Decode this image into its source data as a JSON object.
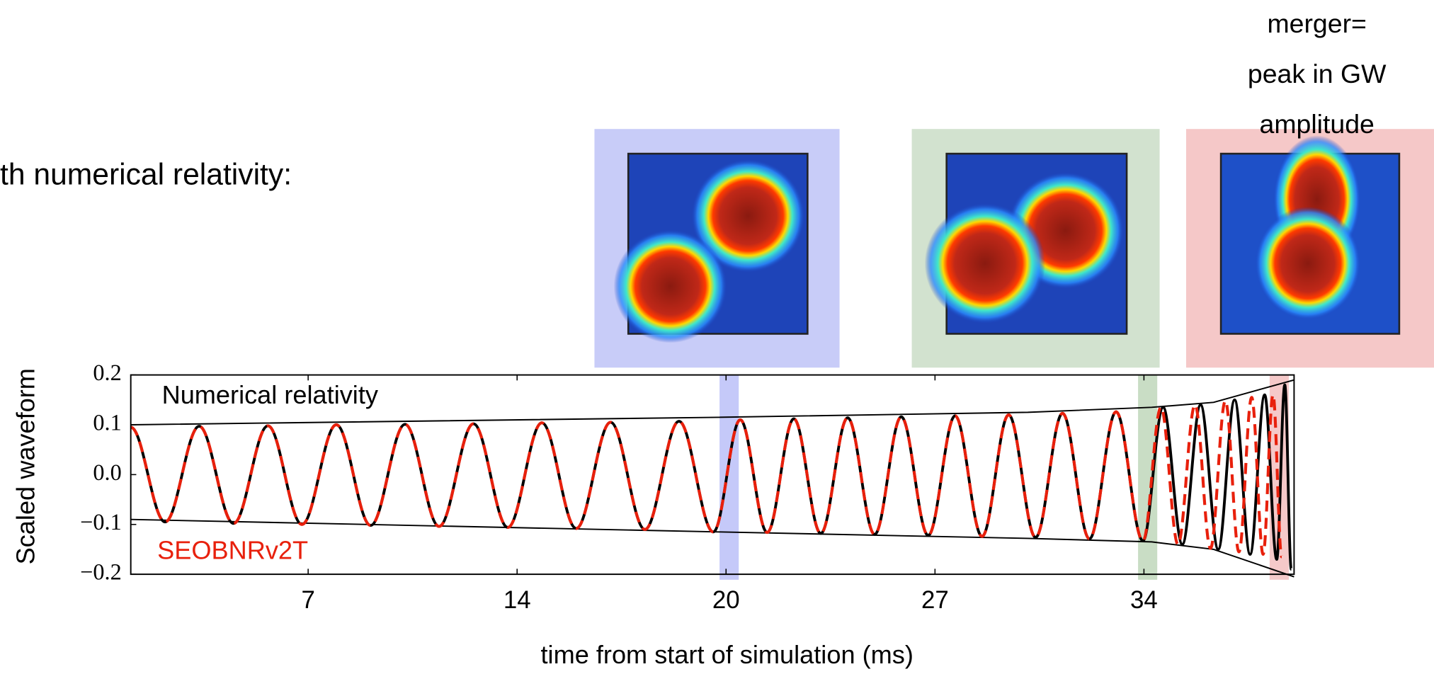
{
  "slide": {
    "text": "th numerical relativity:",
    "callout": [
      "merger=",
      "peak in GW",
      "amplitude"
    ]
  },
  "chart_data": {
    "type": "line",
    "xlabel": "time from start of simulation (ms)",
    "ylabel": "Scaled waveform",
    "xlim": [
      1.02,
      38.6
    ],
    "ylim": [
      -0.2,
      0.2
    ],
    "xticks": [
      {
        "value": 6.75,
        "label": "7"
      },
      {
        "value": 13.5,
        "label": "14"
      },
      {
        "value": 20.25,
        "label": "20"
      },
      27,
      {
        "value": 33.75,
        "label": "34"
      }
    ],
    "yticks": [
      0.2,
      0.1,
      {
        "value": 0,
        "label": "0.0"
      },
      {
        "value": -0.1,
        "label": "−0.1"
      },
      {
        "value": -0.2,
        "label": "−0.2"
      }
    ],
    "series": [
      {
        "name": "Numerical relativity",
        "color": "#000000",
        "smooth": true,
        "dashed": false,
        "x": [
          1.02,
          2.13,
          3.23,
          4.34,
          5.45,
          6.55,
          7.66,
          8.77,
          9.88,
          10.98,
          12.09,
          13.2,
          14.3,
          15.41,
          16.52,
          17.63,
          18.73,
          19.84,
          20.71,
          21.58,
          22.44,
          23.31,
          24.18,
          25.05,
          25.91,
          26.78,
          27.65,
          28.52,
          29.38,
          30.25,
          31.12,
          31.99,
          32.85,
          33.72,
          34.37,
          34.99,
          35.58,
          36.15,
          36.68,
          37.18,
          37.65,
          38.04,
          38.3,
          38.51
        ],
        "values": [
          0.095,
          -0.095,
          0.097,
          -0.098,
          0.098,
          -0.1,
          0.1,
          -0.102,
          0.101,
          -0.104,
          0.102,
          -0.106,
          0.104,
          -0.108,
          0.105,
          -0.11,
          0.107,
          -0.115,
          0.11,
          -0.116,
          0.112,
          -0.118,
          0.114,
          -0.12,
          0.116,
          -0.122,
          0.118,
          -0.124,
          0.12,
          -0.126,
          0.123,
          -0.129,
          0.126,
          -0.133,
          0.135,
          -0.14,
          0.14,
          -0.15,
          0.15,
          -0.16,
          0.16,
          -0.17,
          0.18,
          -0.19
        ]
      },
      {
        "name": "SEOBNRv2T",
        "color": "#e8200c",
        "smooth": true,
        "dashed": true,
        "x": [
          1.02,
          2.13,
          3.23,
          4.34,
          5.45,
          6.55,
          7.66,
          8.77,
          9.88,
          10.98,
          12.09,
          13.2,
          14.3,
          15.41,
          16.52,
          17.63,
          18.73,
          19.84,
          20.71,
          21.58,
          22.44,
          23.31,
          24.18,
          25.05,
          25.91,
          26.78,
          27.65,
          28.52,
          29.38,
          30.25,
          31.12,
          31.99,
          32.85,
          33.72,
          34.3,
          34.85,
          35.4,
          35.9,
          36.38,
          36.82,
          37.23,
          37.6,
          37.92,
          38.2
        ],
        "values": [
          0.095,
          -0.095,
          0.097,
          -0.098,
          0.098,
          -0.1,
          0.1,
          -0.102,
          0.101,
          -0.104,
          0.102,
          -0.106,
          0.104,
          -0.108,
          0.105,
          -0.11,
          0.107,
          -0.115,
          0.11,
          -0.116,
          0.112,
          -0.118,
          0.114,
          -0.12,
          0.116,
          -0.122,
          0.118,
          -0.124,
          0.12,
          -0.126,
          0.123,
          -0.129,
          0.126,
          -0.133,
          0.135,
          -0.14,
          0.14,
          -0.148,
          0.148,
          -0.155,
          0.155,
          -0.16,
          0.16,
          -0.165
        ]
      },
      {
        "color": "#000000",
        "smooth": false,
        "dashed": false,
        "x": [
          1.02,
          20,
          30,
          34,
          36,
          38.6
        ],
        "values": [
          0.1,
          0.115,
          0.125,
          0.135,
          0.145,
          0.19
        ]
      },
      {
        "color": "#000000",
        "smooth": false,
        "dashed": false,
        "x": [
          1.02,
          20,
          30,
          34,
          36,
          38.6
        ],
        "values": [
          -0.09,
          -0.115,
          -0.128,
          -0.135,
          -0.15,
          -0.205
        ]
      }
    ],
    "highlights": [
      {
        "x": 20.35,
        "color": "#6e78f0"
      },
      {
        "x": 33.87,
        "color": "#78aa6e"
      },
      {
        "x": 38.12,
        "color": "#e67878"
      }
    ]
  }
}
